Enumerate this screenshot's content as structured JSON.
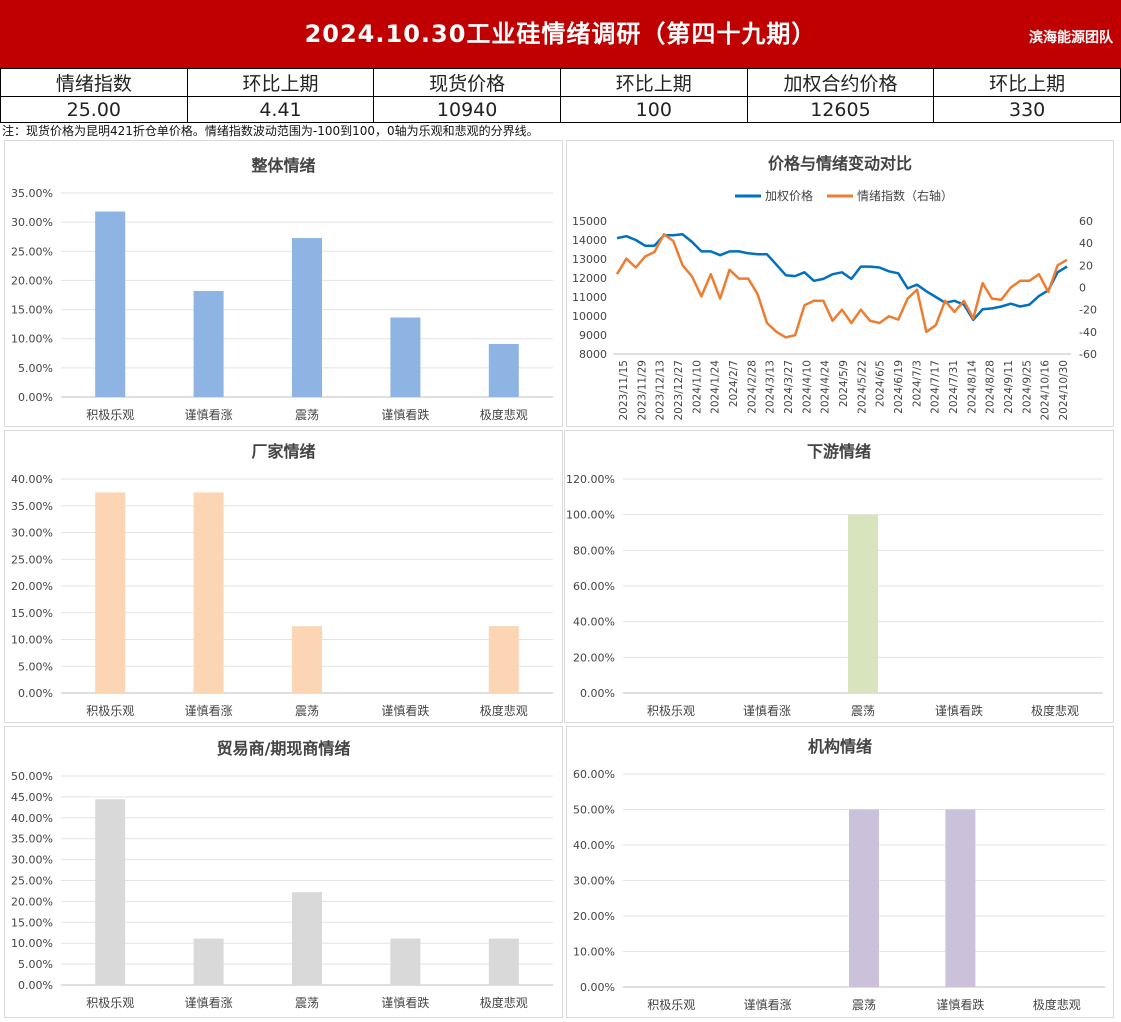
{
  "header": {
    "title": "2024.10.30工业硅情绪调研（第四十九期）",
    "team": "滨海能源团队",
    "bg_color": "#c00000"
  },
  "summary": {
    "headers": [
      "情绪指数",
      "环比上期",
      "现货价格",
      "环比上期",
      "加权合约价格",
      "环比上期"
    ],
    "values": [
      "25.00",
      "4.41",
      "10940",
      "100",
      "12605",
      "330"
    ]
  },
  "note": "注：现货价格为昆明421折仓单价格。情绪指数波动范围为-100到100，0轴为乐观和悲观的分界线。",
  "chart_data": [
    {
      "id": "overall",
      "type": "bar",
      "title": "整体情绪",
      "categories": [
        "积极乐观",
        "谨慎看涨",
        "震荡",
        "谨慎看跌",
        "极度悲观"
      ],
      "values": [
        31.82,
        18.18,
        27.27,
        13.64,
        9.09
      ],
      "ylim": [
        0,
        35
      ],
      "yticks": [
        "0.00%",
        "5.00%",
        "10.00%",
        "15.00%",
        "20.00%",
        "25.00%",
        "30.00%",
        "35.00%"
      ],
      "color": "#8eb4e3",
      "grid": true
    },
    {
      "id": "price-vs-sentiment",
      "type": "line",
      "title": "价格与情绪变动对比",
      "legend": [
        "加权价格",
        "情绪指数（右轴）"
      ],
      "legend_position": "top",
      "x_tick_labels": [
        "2023/11/15",
        "2023/11/29",
        "2023/12/13",
        "2023/12/27",
        "2024/1/10",
        "2024/1/24",
        "2024/2/7",
        "2024/2/28",
        "2024/3/13",
        "2024/3/27",
        "2024/4/10",
        "2024/4/24",
        "2024/5/9",
        "2024/5/22",
        "2024/6/5",
        "2024/6/19",
        "2024/7/3",
        "2024/7/17",
        "2024/7/31",
        "2024/8/14",
        "2024/8/28",
        "2024/9/11",
        "2024/9/25",
        "2024/10/16",
        "2024/10/30"
      ],
      "series": [
        {
          "name": "加权价格",
          "axis": "left",
          "color": "#0070c0",
          "values": [
            14100,
            14200,
            14000,
            13700,
            13700,
            14250,
            14250,
            14300,
            13900,
            13400,
            13400,
            13200,
            13400,
            13400,
            13300,
            13250,
            13250,
            12700,
            12150,
            12100,
            12300,
            11850,
            11950,
            12200,
            12300,
            11950,
            12600,
            12600,
            12550,
            12350,
            12250,
            11450,
            11650,
            11300,
            11000,
            10700,
            10800,
            10600,
            9800,
            10350,
            10400,
            10500,
            10650,
            10500,
            10600,
            11050,
            11350,
            12300,
            12605
          ]
        },
        {
          "name": "情绪指数（右轴）",
          "axis": "right",
          "color": "#ed7d31",
          "values": [
            12,
            26,
            18,
            28,
            32,
            48,
            42,
            20,
            10,
            -8,
            12,
            -10,
            16,
            8,
            8,
            -6,
            -32,
            -40,
            -45,
            -43,
            -16,
            -12,
            -12,
            -30,
            -20,
            -32,
            -20,
            -30,
            -32,
            -26,
            -29,
            -10,
            -2,
            -40,
            -34,
            -12,
            -22,
            -12,
            -28,
            4,
            -10,
            -11,
            0,
            6,
            6,
            12,
            -4,
            20,
            25
          ]
        }
      ],
      "ylim_left": [
        8000,
        15000
      ],
      "yticks_left": [
        "8000",
        "9000",
        "10000",
        "11000",
        "12000",
        "13000",
        "14000",
        "15000"
      ],
      "ylim_right": [
        -60,
        60
      ],
      "yticks_right": [
        "-60",
        "-40",
        "-20",
        "0",
        "20",
        "40",
        "60"
      ]
    },
    {
      "id": "producers",
      "type": "bar",
      "title": "厂家情绪",
      "categories": [
        "积极乐观",
        "谨慎看涨",
        "震荡",
        "谨慎看跌",
        "极度悲观"
      ],
      "values": [
        37.5,
        37.5,
        12.5,
        0,
        12.5
      ],
      "ylim": [
        0,
        40
      ],
      "yticks": [
        "0.00%",
        "5.00%",
        "10.00%",
        "15.00%",
        "20.00%",
        "25.00%",
        "30.00%",
        "35.00%",
        "40.00%"
      ],
      "color": "#fcd5b5",
      "grid": true
    },
    {
      "id": "downstream",
      "type": "bar",
      "title": "下游情绪",
      "categories": [
        "积极乐观",
        "谨慎看涨",
        "震荡",
        "谨慎看跌",
        "极度悲观"
      ],
      "values": [
        0,
        0,
        100,
        0,
        0
      ],
      "ylim": [
        0,
        120
      ],
      "yticks": [
        "0.00%",
        "20.00%",
        "40.00%",
        "60.00%",
        "80.00%",
        "100.00%",
        "120.00%"
      ],
      "color": "#d7e4bd",
      "grid": true
    },
    {
      "id": "traders",
      "type": "bar",
      "title": "贸易商/期现商情绪",
      "categories": [
        "积极乐观",
        "谨慎看涨",
        "震荡",
        "谨慎看跌",
        "极度悲观"
      ],
      "values": [
        44.44,
        11.11,
        22.22,
        11.11,
        11.11
      ],
      "ylim": [
        0,
        50
      ],
      "yticks": [
        "0.00%",
        "5.00%",
        "10.00%",
        "15.00%",
        "20.00%",
        "25.00%",
        "30.00%",
        "35.00%",
        "40.00%",
        "45.00%",
        "50.00%"
      ],
      "color": "#d9d9d9",
      "grid": true
    },
    {
      "id": "institutions",
      "type": "bar",
      "title": "机构情绪",
      "categories": [
        "积极乐观",
        "谨慎看涨",
        "震荡",
        "谨慎看跌",
        "极度悲观"
      ],
      "values": [
        0,
        0,
        50,
        50,
        0
      ],
      "ylim": [
        0,
        60
      ],
      "yticks": [
        "0.00%",
        "10.00%",
        "20.00%",
        "30.00%",
        "40.00%",
        "50.00%",
        "60.00%"
      ],
      "color": "#ccc1da",
      "grid": true
    }
  ]
}
